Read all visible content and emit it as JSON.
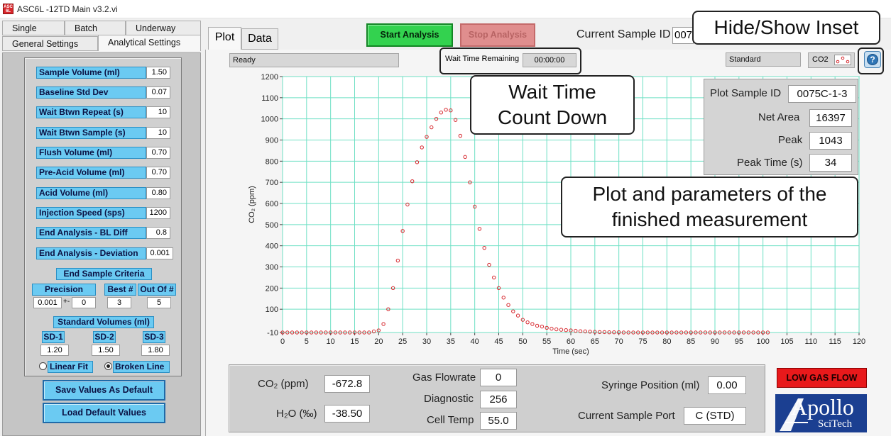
{
  "window": {
    "title": "ASC6L -12TD Main v3.2.vi",
    "icon": "app-icon"
  },
  "left_tabs": {
    "row1": [
      "Single",
      "Batch",
      "Underway"
    ],
    "row2": [
      "General Settings",
      "Analytical Settings"
    ],
    "selected": "Analytical Settings"
  },
  "params": [
    {
      "label": "Sample Volume (ml)",
      "value": "1.50"
    },
    {
      "label": "Baseline Std Dev",
      "value": "0.07"
    },
    {
      "label": "Wait Btwn Repeat (s)",
      "value": "10"
    },
    {
      "label": "Wait Btwn Sample (s)",
      "value": "10"
    },
    {
      "label": "Flush Volume (ml)",
      "value": "0.70"
    },
    {
      "label": "Pre-Acid Volume (ml)",
      "value": "0.70"
    },
    {
      "label": "Acid Volume (ml)",
      "value": "0.80"
    },
    {
      "label": "Injection Speed (sps)",
      "value": "1200"
    },
    {
      "label": "End Analysis - BL Diff",
      "value": "0.8"
    },
    {
      "label": "End Analysis - Deviation",
      "value": "0.001"
    }
  ],
  "end_sample": {
    "title": "End Sample Criteria",
    "precision_label": "Precision",
    "precision_value": "0.001",
    "plus_minus": "+-",
    "precision_value2": "0",
    "best_label": "Best #",
    "best_value": "3",
    "outof_label": "Out Of #",
    "outof_value": "5"
  },
  "standard_volumes": {
    "title": "Standard Volumes (ml)",
    "items": [
      {
        "label": "SD-1",
        "value": "1.20"
      },
      {
        "label": "SD-2",
        "value": "1.50"
      },
      {
        "label": "SD-3",
        "value": "1.80"
      }
    ]
  },
  "fit": {
    "linear": "Linear Fit",
    "broken": "Broken Line",
    "selected": "broken"
  },
  "buttons": {
    "save_default": "Save Values As Default",
    "load_default": "Load Default Values",
    "start": "Start Analysis",
    "stop": "Stop Analysis"
  },
  "right_tabs": [
    "Plot",
    "Data"
  ],
  "current_sample": {
    "label": "Current Sample ID",
    "value": "007"
  },
  "status": {
    "text": "Ready",
    "wait_label": "Wait Time Remaining",
    "wait_value": "00:00:00",
    "standard": "Standard",
    "gas": "CO2",
    "help": "?"
  },
  "inset": {
    "plot_sample_id_label": "Plot Sample ID",
    "plot_sample_id": "0075C-1-3",
    "net_area_label": "Net Area",
    "net_area": "16397",
    "peak_label": "Peak",
    "peak": "1043",
    "peak_time_label": "Peak Time (s)",
    "peak_time": "34"
  },
  "bottom": {
    "co2_label": "CO₂ (ppm)",
    "co2": "-672.8",
    "h2o_label": "H₂O (‰)",
    "h2o": "-38.50",
    "gas_flow_label": "Gas Flowrate",
    "gas_flow": "0",
    "diag_label": "Diagnostic",
    "diag": "256",
    "cell_temp_label": "Cell Temp",
    "cell_temp": "55.0",
    "syringe_label": "Syringe Position (ml)",
    "syringe": "0.00",
    "port_label": "Current Sample Port",
    "port": "C (STD)"
  },
  "alarm": {
    "text": "LOW GAS FLOW",
    "color": "#e8191b"
  },
  "logo": {
    "top": "Apollo",
    "bottom": "SciTech"
  },
  "callouts": {
    "hide_show": "Hide/Show Inset",
    "wait": "Wait Time\nCount Down",
    "plot_params": "Plot and parameters of the\nfinished measurement"
  },
  "chart_data": {
    "type": "scatter",
    "xlabel": "Time (sec)",
    "ylabel": "CO₂ (ppm)",
    "xlim": [
      0,
      120
    ],
    "ylim": [
      -10,
      1200
    ],
    "xticks": [
      0,
      5,
      10,
      15,
      20,
      25,
      30,
      35,
      40,
      45,
      50,
      55,
      60,
      65,
      70,
      75,
      80,
      85,
      90,
      95,
      100,
      105,
      110,
      115,
      120
    ],
    "yticks": [
      -10,
      100,
      200,
      300,
      400,
      500,
      600,
      700,
      800,
      900,
      1000,
      1100,
      1200
    ],
    "grid": true,
    "colors": {
      "grid": "#6ee0c4",
      "marker": "#d6282e",
      "axis": "#444444"
    },
    "x": [
      0,
      1,
      2,
      3,
      4,
      5,
      6,
      7,
      8,
      9,
      10,
      11,
      12,
      13,
      14,
      15,
      16,
      17,
      18,
      19,
      20,
      21,
      22,
      23,
      24,
      25,
      26,
      27,
      28,
      29,
      30,
      31,
      32,
      33,
      34,
      35,
      36,
      37,
      38,
      39,
      40,
      41,
      42,
      43,
      44,
      45,
      46,
      47,
      48,
      49,
      50,
      51,
      52,
      53,
      54,
      55,
      56,
      57,
      58,
      59,
      60,
      61,
      62,
      63,
      64,
      65,
      66,
      67,
      68,
      69,
      70,
      71,
      72,
      73,
      74,
      75,
      76,
      77,
      78,
      79,
      80,
      81,
      82,
      83,
      84,
      85,
      86,
      87,
      88,
      89,
      90,
      91,
      92,
      93,
      94,
      95,
      96,
      97,
      98,
      99,
      100,
      101
    ],
    "y": [
      -10,
      -10,
      -10,
      -10,
      -10,
      -10,
      -10,
      -10,
      -10,
      -10,
      -10,
      -10,
      -10,
      -10,
      -10,
      -10,
      -10,
      -10,
      -10,
      -5,
      0,
      30,
      100,
      200,
      330,
      470,
      595,
      705,
      795,
      865,
      915,
      960,
      1000,
      1030,
      1043,
      1040,
      995,
      920,
      820,
      700,
      585,
      480,
      390,
      310,
      250,
      200,
      155,
      120,
      90,
      70,
      50,
      38,
      30,
      22,
      18,
      12,
      8,
      5,
      3,
      1,
      0,
      -2,
      -4,
      -5,
      -6,
      -7,
      -8,
      -8,
      -9,
      -9,
      -9,
      -10,
      -10,
      -10,
      -10,
      -10,
      -10,
      -10,
      -10,
      -10,
      -10,
      -10,
      -10,
      -10,
      -10,
      -10,
      -10,
      -10,
      -10,
      -10,
      -10,
      -10,
      -10,
      -10,
      -10,
      -10,
      -10,
      -10,
      -10,
      -10,
      -10,
      -10
    ]
  }
}
